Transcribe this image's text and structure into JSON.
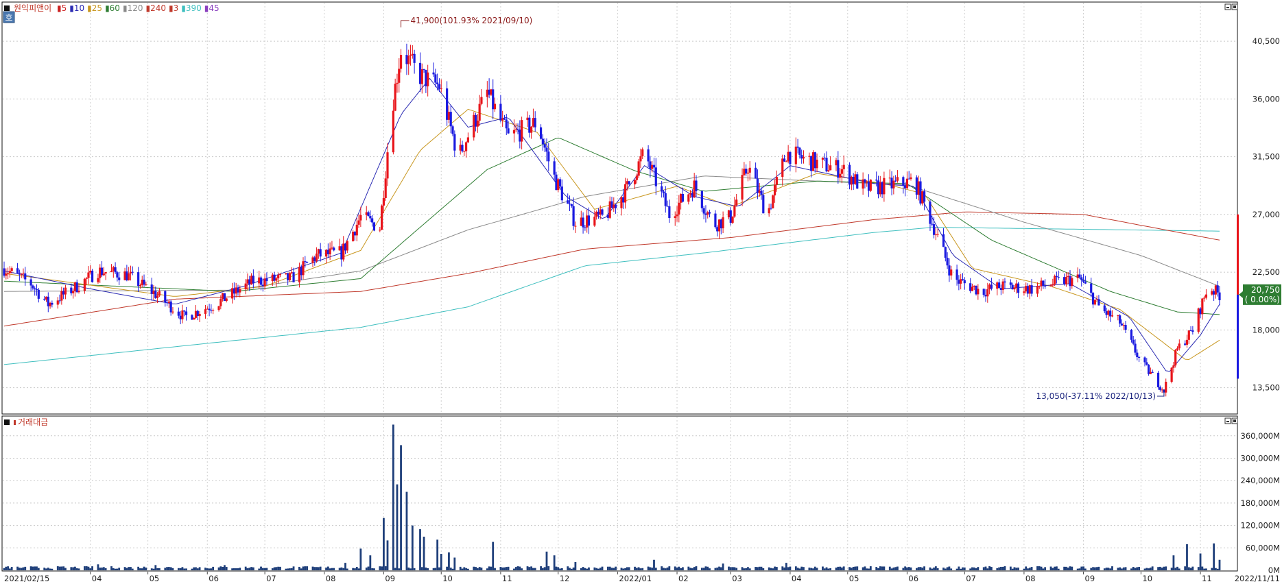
{
  "legend": {
    "stock_name": "원익피앤이",
    "ma_items": [
      {
        "label": "5",
        "color": "#cc2222"
      },
      {
        "label": "10",
        "color": "#2b2bb3"
      },
      {
        "label": "25",
        "color": "#c8961e"
      },
      {
        "label": "60",
        "color": "#2e7d32"
      },
      {
        "label": "120",
        "color": "#8a8a8a"
      },
      {
        "label": "240",
        "color": "#c0392b"
      },
      {
        "label": "3",
        "color": "#c0392b"
      },
      {
        "label": "390",
        "color": "#3fbfbf"
      },
      {
        "label": "45",
        "color": "#8a3fbf"
      }
    ],
    "volume_title": "거래대금",
    "mode_badge": "호"
  },
  "annotations": {
    "high": "41,900(101.93% 2021/09/10)",
    "low": "13,050(-37.11% 2022/10/13)",
    "current_price": "20,750",
    "current_change": "( 0.00%)"
  },
  "chart_data": [
    {
      "type": "candlestick",
      "ylim": [
        11500,
        43500
      ],
      "price_ticks": [
        "40,500",
        "36,000",
        "31,500",
        "27,000",
        "22,500",
        "18,000",
        "13,500"
      ],
      "price_tick_values": [
        40500,
        36000,
        31500,
        27000,
        22500,
        18000,
        13500
      ],
      "x_labels": [
        "2021/02/15",
        "04",
        "05",
        "06",
        "07",
        "08",
        "09",
        "10",
        "11",
        "12",
        "2022/01",
        "02",
        "03",
        "04",
        "05",
        "06",
        "07",
        "08",
        "09",
        "10",
        "11",
        "2022/11/11"
      ],
      "close_path": [
        [
          "2021-02-15",
          22800
        ],
        [
          "2021-03-01",
          21600
        ],
        [
          "2021-03-10",
          20000
        ],
        [
          "2021-03-25",
          21400
        ],
        [
          "2021-04-05",
          22600
        ],
        [
          "2021-04-20",
          22300
        ],
        [
          "2021-05-05",
          20800
        ],
        [
          "2021-05-20",
          19000
        ],
        [
          "2021-06-05",
          20000
        ],
        [
          "2021-06-25",
          21800
        ],
        [
          "2021-07-15",
          22000
        ],
        [
          "2021-07-28",
          23800
        ],
        [
          "2021-08-10",
          24000
        ],
        [
          "2021-08-20",
          26800
        ],
        [
          "2021-08-30",
          26000
        ],
        [
          "2021-09-05",
          35000
        ],
        [
          "2021-09-10",
          39800
        ],
        [
          "2021-09-20",
          37800
        ],
        [
          "2021-09-30",
          37000
        ],
        [
          "2021-10-10",
          31500
        ],
        [
          "2021-10-25",
          36500
        ],
        [
          "2021-11-05",
          33000
        ],
        [
          "2021-11-20",
          34200
        ],
        [
          "2021-11-28",
          30200
        ],
        [
          "2021-12-10",
          26400
        ],
        [
          "2021-12-25",
          26800
        ],
        [
          "2022-01-05",
          28800
        ],
        [
          "2022-01-15",
          31800
        ],
        [
          "2022-01-28",
          27000
        ],
        [
          "2022-02-10",
          29200
        ],
        [
          "2022-02-20",
          26200
        ],
        [
          "2022-03-01",
          26800
        ],
        [
          "2022-03-10",
          30800
        ],
        [
          "2022-03-20",
          27000
        ],
        [
          "2022-03-30",
          31800
        ],
        [
          "2022-04-15",
          31000
        ],
        [
          "2022-04-28",
          30500
        ],
        [
          "2022-05-10",
          29000
        ],
        [
          "2022-05-25",
          29300
        ],
        [
          "2022-06-05",
          29600
        ],
        [
          "2022-06-15",
          26000
        ],
        [
          "2022-06-25",
          22000
        ],
        [
          "2022-07-10",
          21000
        ],
        [
          "2022-07-20",
          21400
        ],
        [
          "2022-08-05",
          21200
        ],
        [
          "2022-08-20",
          21800
        ],
        [
          "2022-08-30",
          22000
        ],
        [
          "2022-09-10",
          19600
        ],
        [
          "2022-09-20",
          18600
        ],
        [
          "2022-10-01",
          15500
        ],
        [
          "2022-10-13",
          13300
        ],
        [
          "2022-10-20",
          16500
        ],
        [
          "2022-10-28",
          18000
        ],
        [
          "2022-11-05",
          21400
        ],
        [
          "2022-11-11",
          20750
        ]
      ],
      "ma_series": [
        {
          "name": "390",
          "color": "#3fbfbf",
          "values": [
            [
              "2021-02-15",
              15300
            ],
            [
              "2021-08-20",
              18200
            ],
            [
              "2021-10-15",
              19800
            ],
            [
              "2021-12-15",
              23000
            ],
            [
              "2022-02-15",
              24000
            ],
            [
              "2022-05-15",
              25600
            ],
            [
              "2022-06-15",
              26000
            ],
            [
              "2022-11-11",
              25700
            ]
          ]
        },
        {
          "name": "240",
          "color": "#c0392b",
          "values": [
            [
              "2021-02-15",
              18300
            ],
            [
              "2021-05-15",
              20400
            ],
            [
              "2021-08-20",
              21000
            ],
            [
              "2021-10-15",
              22400
            ],
            [
              "2021-12-15",
              24300
            ],
            [
              "2022-03-01",
              25200
            ],
            [
              "2022-05-15",
              26600
            ],
            [
              "2022-07-01",
              27200
            ],
            [
              "2022-09-01",
              27000
            ],
            [
              "2022-11-11",
              25000
            ]
          ]
        },
        {
          "name": "120",
          "color": "#8a8a8a",
          "values": [
            [
              "2021-02-15",
              21000
            ],
            [
              "2021-06-15",
              21100
            ],
            [
              "2021-08-20",
              22600
            ],
            [
              "2021-10-15",
              25800
            ],
            [
              "2021-12-15",
              28400
            ],
            [
              "2022-02-15",
              30000
            ],
            [
              "2022-04-15",
              29600
            ],
            [
              "2022-06-01",
              29300
            ],
            [
              "2022-08-01",
              26400
            ],
            [
              "2022-10-01",
              23800
            ],
            [
              "2022-11-11",
              21400
            ]
          ]
        },
        {
          "name": "60",
          "color": "#2e7d32",
          "values": [
            [
              "2021-02-15",
              21800
            ],
            [
              "2021-06-15",
              21000
            ],
            [
              "2021-08-20",
              22000
            ],
            [
              "2021-09-20",
              26000
            ],
            [
              "2021-10-25",
              30500
            ],
            [
              "2021-12-01",
              33000
            ],
            [
              "2022-01-10",
              30400
            ],
            [
              "2022-02-15",
              28800
            ],
            [
              "2022-04-15",
              29600
            ],
            [
              "2022-06-01",
              29400
            ],
            [
              "2022-07-15",
              25000
            ],
            [
              "2022-09-15",
              21000
            ],
            [
              "2022-10-20",
              19400
            ],
            [
              "2022-11-11",
              19200
            ]
          ]
        },
        {
          "name": "25",
          "color": "#c8961e",
          "values": [
            [
              "2021-02-15",
              22400
            ],
            [
              "2021-05-15",
              20600
            ],
            [
              "2021-07-01",
              21400
            ],
            [
              "2021-08-20",
              24200
            ],
            [
              "2021-09-20",
              32000
            ],
            [
              "2021-10-15",
              35200
            ],
            [
              "2021-11-20",
              33400
            ],
            [
              "2021-12-20",
              27400
            ],
            [
              "2022-02-01",
              29200
            ],
            [
              "2022-03-01",
              27600
            ],
            [
              "2022-04-15",
              30200
            ],
            [
              "2022-05-20",
              29400
            ],
            [
              "2022-06-10",
              28600
            ],
            [
              "2022-07-05",
              22800
            ],
            [
              "2022-08-15",
              21400
            ],
            [
              "2022-09-20",
              19600
            ],
            [
              "2022-10-25",
              15600
            ],
            [
              "2022-11-11",
              17200
            ]
          ]
        },
        {
          "name": "10",
          "color": "#2b2bb3",
          "values": [
            [
              "2021-02-15",
              22600
            ],
            [
              "2021-04-01",
              21200
            ],
            [
              "2021-05-15",
              20000
            ],
            [
              "2021-06-20",
              21400
            ],
            [
              "2021-08-10",
              24000
            ],
            [
              "2021-09-10",
              34800
            ],
            [
              "2021-09-25",
              37600
            ],
            [
              "2021-10-15",
              33800
            ],
            [
              "2021-11-05",
              34600
            ],
            [
              "2021-12-05",
              28400
            ],
            [
              "2021-12-25",
              26600
            ],
            [
              "2022-01-15",
              30800
            ],
            [
              "2022-02-10",
              28400
            ],
            [
              "2022-03-05",
              27600
            ],
            [
              "2022-04-01",
              30800
            ],
            [
              "2022-05-15",
              29400
            ],
            [
              "2022-06-05",
              29200
            ],
            [
              "2022-06-25",
              23800
            ],
            [
              "2022-07-20",
              21200
            ],
            [
              "2022-08-25",
              21600
            ],
            [
              "2022-09-25",
              19000
            ],
            [
              "2022-10-15",
              14600
            ],
            [
              "2022-11-01",
              17600
            ],
            [
              "2022-11-11",
              20000
            ]
          ]
        }
      ],
      "high_point": {
        "date": "2021-09-10",
        "value": 41900
      },
      "low_point": {
        "date": "2022-10-13",
        "value": 13050
      },
      "last": {
        "date": "2022-11-11",
        "value": 20750
      }
    },
    {
      "type": "bar",
      "name": "거래대금",
      "ylim": [
        0,
        400000
      ],
      "y_ticks": [
        "360,000M",
        "300,000M",
        "240,000M",
        "180,000M",
        "120,000M",
        "60,000M",
        "0M"
      ],
      "y_tick_values": [
        360000,
        300000,
        240000,
        180000,
        120000,
        60000,
        0
      ],
      "spikes": [
        [
          "2021-02-25",
          8000
        ],
        [
          "2021-04-05",
          16000
        ],
        [
          "2021-05-05",
          14000
        ],
        [
          "2021-06-10",
          14000
        ],
        [
          "2021-07-25",
          32000
        ],
        [
          "2021-08-01",
          18000
        ],
        [
          "2021-08-12",
          20000
        ],
        [
          "2021-08-20",
          58000
        ],
        [
          "2021-08-25",
          40000
        ],
        [
          "2021-09-01",
          140000
        ],
        [
          "2021-09-03",
          80000
        ],
        [
          "2021-09-06",
          390000
        ],
        [
          "2021-09-08",
          230000
        ],
        [
          "2021-09-10",
          335000
        ],
        [
          "2021-09-13",
          210000
        ],
        [
          "2021-09-16",
          120000
        ],
        [
          "2021-09-20",
          110000
        ],
        [
          "2021-09-22",
          90000
        ],
        [
          "2021-09-26",
          60000
        ],
        [
          "2021-09-29",
          82000
        ],
        [
          "2021-10-01",
          44000
        ],
        [
          "2021-10-05",
          48000
        ],
        [
          "2021-10-08",
          34000
        ],
        [
          "2021-10-28",
          76000
        ],
        [
          "2021-11-25",
          50000
        ],
        [
          "2021-11-29",
          40000
        ],
        [
          "2021-12-10",
          22000
        ],
        [
          "2022-01-15",
          55000
        ],
        [
          "2022-01-20",
          28000
        ],
        [
          "2022-02-25",
          18000
        ],
        [
          "2022-03-30",
          20000
        ],
        [
          "2022-04-30",
          28000
        ],
        [
          "2022-06-05",
          16000
        ],
        [
          "2022-10-18",
          40000
        ],
        [
          "2022-10-25",
          70000
        ],
        [
          "2022-11-01",
          45000
        ],
        [
          "2022-11-08",
          72000
        ],
        [
          "2022-11-11",
          28000
        ]
      ]
    }
  ]
}
